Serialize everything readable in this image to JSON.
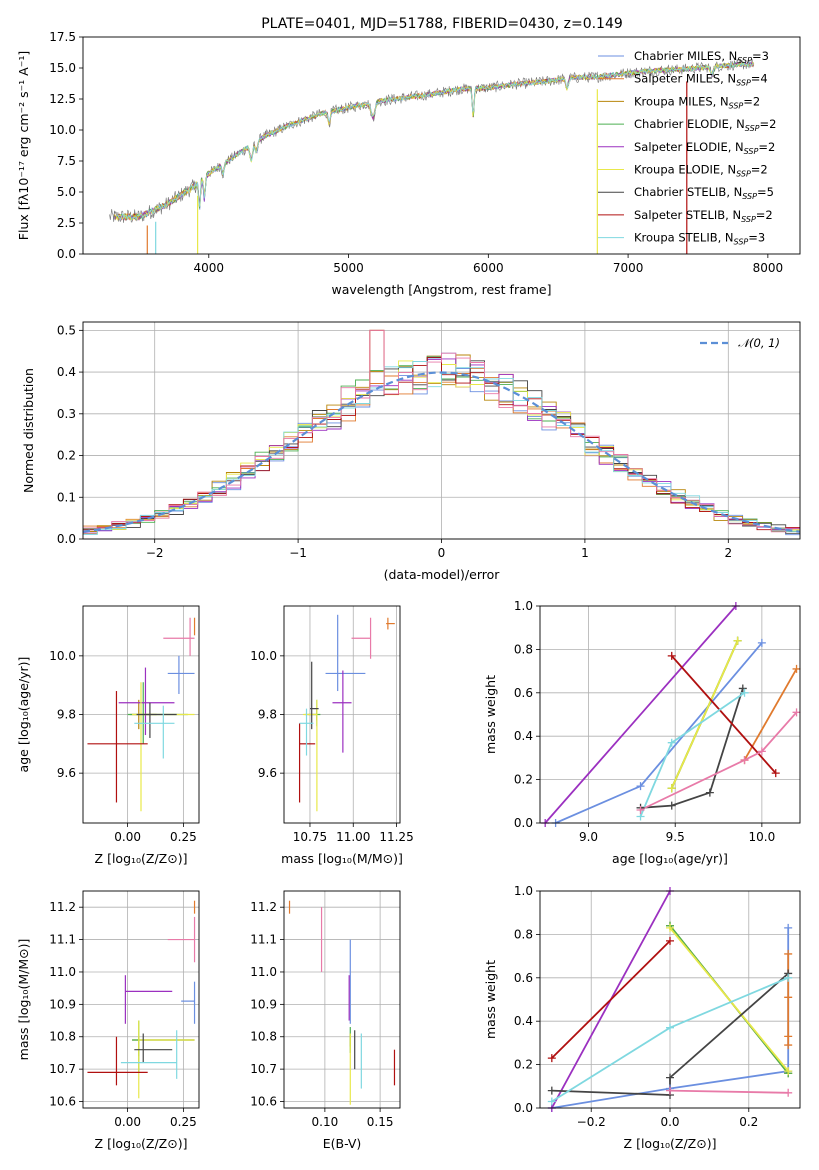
{
  "figure": {
    "title": "PLATE=0401, MJD=51788, FIBERID=0430, z=0.149"
  },
  "colors": [
    "#6b8fe0",
    "#e07a2e",
    "#b8860b",
    "#4caf50",
    "#9b30c0",
    "#e8e84a",
    "#444444",
    "#b01010",
    "#7fd8e0",
    "#e87aa8"
  ],
  "chart_data": [
    {
      "id": "spectrum",
      "type": "line",
      "title": "PLATE=0401, MJD=51788, FIBERID=0430, z=0.149",
      "xlabel": "wavelength [Angstrom, rest frame]",
      "ylabel": "Flux [fλ10⁻¹⁷ erg cm⁻² s⁻¹ A⁻¹]",
      "xlim": [
        3100,
        8230
      ],
      "ylim": [
        0,
        17.5
      ],
      "xticks": [
        4000,
        5000,
        6000,
        7000,
        8000
      ],
      "yticks": [
        0.0,
        2.5,
        5.0,
        7.5,
        10.0,
        12.5,
        15.0,
        17.5
      ],
      "legend_position": "top-right",
      "series": [
        {
          "name": "Chabrier MILES, N_SSP=3",
          "color": "#6b8fe0"
        },
        {
          "name": "Salpeter MILES, N_SSP=4",
          "color": "#e07a2e"
        },
        {
          "name": "Kroupa MILES, N_SSP=2",
          "color": "#b8860b"
        },
        {
          "name": "Chabrier ELODIE, N_SSP=2",
          "color": "#4caf50"
        },
        {
          "name": "Salpeter ELODIE, N_SSP=2",
          "color": "#9b30c0"
        },
        {
          "name": "Kroupa ELODIE, N_SSP=2",
          "color": "#e8e84a"
        },
        {
          "name": "Chabrier STELIB, N_SSP=5",
          "color": "#444444"
        },
        {
          "name": "Salpeter STELIB, N_SSP=2",
          "color": "#b01010"
        },
        {
          "name": "Kroupa STELIB, N_SSP=3",
          "color": "#7fd8e0"
        }
      ],
      "continuum": {
        "x": [
          3300,
          3500,
          3700,
          3900,
          4000,
          4200,
          4400,
          4600,
          4800,
          5000,
          5200,
          5400,
          5600,
          5800,
          6000,
          6200,
          6400,
          6600,
          6800,
          7000,
          7200,
          7400,
          7600,
          7800
        ],
        "y": [
          3.0,
          3.0,
          4.0,
          5.5,
          6.5,
          8.0,
          9.5,
          10.5,
          11.3,
          11.8,
          12.3,
          12.6,
          12.9,
          13.3,
          13.4,
          13.7,
          13.9,
          14.2,
          14.3,
          14.6,
          14.8,
          14.9,
          15.1,
          15.3
        ]
      }
    },
    {
      "id": "residuals",
      "type": "histogram",
      "xlabel": "(data-model)/error",
      "ylabel": "Normed distribution",
      "xlim": [
        -2.5,
        2.5
      ],
      "ylim": [
        0,
        0.52
      ],
      "xticks": [
        -2,
        -1,
        0,
        1,
        2
      ],
      "yticks": [
        0.0,
        0.1,
        0.2,
        0.3,
        0.4,
        0.5
      ],
      "legend": "𝒩(0, 1)",
      "legend_position": "top-right",
      "bin_width": 0.1
    },
    {
      "id": "age-vs-Z",
      "type": "errorbar",
      "xlabel": "Z [log₁₀(Z/Z⊙)]",
      "ylabel": "age  [log₁₀(age/yr)]",
      "xlim": [
        -0.2,
        0.32
      ],
      "ylim": [
        9.43,
        10.17
      ],
      "xticks": [
        0.0,
        0.25
      ],
      "yticks": [
        9.6,
        9.8,
        10.0
      ],
      "points": [
        {
          "x": 0.23,
          "y": 9.94,
          "xerr": [
            0.05,
            0.07
          ],
          "yerr": [
            0.07,
            0.06
          ],
          "color": "#6b8fe0"
        },
        {
          "x": 0.3,
          "y": 10.11,
          "xerr": [
            0.0,
            0.0
          ],
          "yerr": [
            0.04,
            0.02
          ],
          "color": "#e07a2e"
        },
        {
          "x": 0.05,
          "y": 9.8,
          "xerr": [
            0.04,
            0.08
          ],
          "yerr": [
            0.05,
            0.05
          ],
          "color": "#b8860b"
        },
        {
          "x": 0.07,
          "y": 9.8,
          "xerr": [
            0.07,
            0.2
          ],
          "yerr": [
            0.1,
            0.11
          ],
          "color": "#4caf50"
        },
        {
          "x": 0.08,
          "y": 9.84,
          "xerr": [
            0.12,
            0.13
          ],
          "yerr": [
            0.11,
            0.12
          ],
          "color": "#9b30c0"
        },
        {
          "x": 0.06,
          "y": 9.8,
          "xerr": [
            0.04,
            0.24
          ],
          "yerr": [
            0.33,
            0.11
          ],
          "color": "#e8e84a"
        },
        {
          "x": 0.1,
          "y": 9.8,
          "xerr": [
            0.06,
            0.12
          ],
          "yerr": [
            0.08,
            0.04
          ],
          "color": "#444444"
        },
        {
          "x": -0.05,
          "y": 9.7,
          "xerr": [
            0.13,
            0.14
          ],
          "yerr": [
            0.2,
            0.18
          ],
          "color": "#b01010"
        },
        {
          "x": 0.16,
          "y": 9.77,
          "xerr": [
            0.13,
            0.05
          ],
          "yerr": [
            0.12,
            0.06
          ],
          "color": "#7fd8e0"
        },
        {
          "x": 0.28,
          "y": 10.06,
          "xerr": [
            0.12,
            0.02
          ],
          "yerr": [
            0.06,
            0.07
          ],
          "color": "#e87aa8"
        }
      ]
    },
    {
      "id": "age-vs-mass",
      "type": "errorbar",
      "xlabel": "mass [log₁₀(M/M⊙)]",
      "ylabel": "",
      "xlim": [
        10.6,
        11.27
      ],
      "ylim": [
        9.43,
        10.17
      ],
      "xticks": [
        10.75,
        11.0,
        11.25
      ],
      "yticks": [
        9.6,
        9.8,
        10.0
      ],
      "points": [
        {
          "x": 10.91,
          "y": 9.94,
          "xerr": [
            0.07,
            0.16
          ],
          "yerr": [
            0.06,
            0.2
          ],
          "color": "#6b8fe0"
        },
        {
          "x": 11.2,
          "y": 10.11,
          "xerr": [
            0.01,
            0.04
          ],
          "yerr": [
            0.02,
            0.02
          ],
          "color": "#e07a2e"
        },
        {
          "x": 10.79,
          "y": 9.8,
          "xerr": [
            0.07,
            0.0
          ],
          "yerr": [
            0.02,
            0.02
          ],
          "color": "#b8860b"
        },
        {
          "x": 10.79,
          "y": 9.8,
          "xerr": [
            0.05,
            0.02
          ],
          "yerr": [
            0.04,
            0.05
          ],
          "color": "#4caf50"
        },
        {
          "x": 10.94,
          "y": 9.84,
          "xerr": [
            0.06,
            0.05
          ],
          "yerr": [
            0.17,
            0.11
          ],
          "color": "#9b30c0"
        },
        {
          "x": 10.79,
          "y": 9.8,
          "xerr": [
            0.08,
            0.0
          ],
          "yerr": [
            0.33,
            0.05
          ],
          "color": "#e8e84a"
        },
        {
          "x": 10.76,
          "y": 9.82,
          "xerr": [
            0.01,
            0.04
          ],
          "yerr": [
            0.07,
            0.16
          ],
          "color": "#444444"
        },
        {
          "x": 10.69,
          "y": 9.7,
          "xerr": [
            0.0,
            0.09
          ],
          "yerr": [
            0.2,
            0.07
          ],
          "color": "#b01010"
        },
        {
          "x": 10.73,
          "y": 9.77,
          "xerr": [
            0.04,
            0.04
          ],
          "yerr": [
            0.11,
            0.05
          ],
          "color": "#7fd8e0"
        },
        {
          "x": 11.1,
          "y": 10.06,
          "xerr": [
            0.11,
            0.0
          ],
          "yerr": [
            0.07,
            0.07
          ],
          "color": "#e87aa8"
        }
      ]
    },
    {
      "id": "mw-vs-age",
      "type": "line",
      "xlabel": "age  [log₁₀(age/yr)]",
      "ylabel": "mass weight",
      "xlim": [
        8.72,
        10.22
      ],
      "ylim": [
        0,
        1
      ],
      "xticks": [
        9.0,
        9.5,
        10.0
      ],
      "yticks": [
        0.0,
        0.2,
        0.4,
        0.6,
        0.8,
        1.0
      ],
      "series": [
        {
          "color": "#6b8fe0",
          "x": [
            8.81,
            9.3,
            10.0
          ],
          "y": [
            0.0,
            0.17,
            0.83
          ]
        },
        {
          "color": "#e07a2e",
          "x": [
            9.9,
            10.2
          ],
          "y": [
            0.29,
            0.71
          ]
        },
        {
          "color": "#b8860b",
          "x": [
            9.48,
            9.86
          ],
          "y": [
            0.16,
            0.84
          ]
        },
        {
          "color": "#4caf50",
          "x": [
            9.48,
            9.86
          ],
          "y": [
            0.16,
            0.84
          ]
        },
        {
          "color": "#9b30c0",
          "x": [
            8.75,
            9.85
          ],
          "y": [
            0.0,
            1.0
          ]
        },
        {
          "color": "#e8e84a",
          "x": [
            9.48,
            9.86
          ],
          "y": [
            0.16,
            0.84
          ]
        },
        {
          "color": "#444444",
          "x": [
            9.3,
            9.48,
            9.7,
            9.89
          ],
          "y": [
            0.07,
            0.08,
            0.14,
            0.62
          ]
        },
        {
          "color": "#b01010",
          "x": [
            9.48,
            10.08
          ],
          "y": [
            0.77,
            0.23
          ]
        },
        {
          "color": "#7fd8e0",
          "x": [
            9.3,
            9.48,
            9.9
          ],
          "y": [
            0.03,
            0.37,
            0.6
          ]
        },
        {
          "color": "#e87aa8",
          "x": [
            9.3,
            9.9,
            10.0,
            10.2
          ],
          "y": [
            0.06,
            0.29,
            0.33,
            0.51
          ]
        }
      ]
    },
    {
      "id": "mass-vs-Z",
      "type": "errorbar",
      "xlabel": "Z [log₁₀(Z/Z⊙)]",
      "ylabel": "mass [log₁₀(M/M⊙)]",
      "xlim": [
        -0.2,
        0.32
      ],
      "ylim": [
        10.58,
        11.25
      ],
      "xticks": [
        0.0,
        0.25
      ],
      "yticks": [
        10.6,
        10.7,
        10.8,
        10.9,
        11.0,
        11.1,
        11.2
      ],
      "points": [
        {
          "x": 0.3,
          "y": 10.91,
          "xerr": [
            0.06,
            0.0
          ],
          "yerr": [
            0.07,
            0.06
          ],
          "color": "#6b8fe0"
        },
        {
          "x": 0.3,
          "y": 11.2,
          "xerr": [
            0.0,
            0.0
          ],
          "yerr": [
            0.02,
            0.02
          ],
          "color": "#e07a2e"
        },
        {
          "x": 0.05,
          "y": 10.79,
          "xerr": [
            0.03,
            0.25
          ],
          "yerr": [
            0.05,
            0.01
          ],
          "color": "#b8860b"
        },
        {
          "x": 0.05,
          "y": 10.79,
          "xerr": [
            0.03,
            0.25
          ],
          "yerr": [
            0.1,
            0.06
          ],
          "color": "#4caf50"
        },
        {
          "x": -0.01,
          "y": 10.94,
          "xerr": [
            0.0,
            0.21
          ],
          "yerr": [
            0.1,
            0.05
          ],
          "color": "#9b30c0"
        },
        {
          "x": 0.05,
          "y": 10.79,
          "xerr": [
            0.0,
            0.25
          ],
          "yerr": [
            0.18,
            0.06
          ],
          "color": "#e8e84a"
        },
        {
          "x": 0.07,
          "y": 10.76,
          "xerr": [
            0.04,
            0.13
          ],
          "yerr": [
            0.04,
            0.05
          ],
          "color": "#444444"
        },
        {
          "x": -0.05,
          "y": 10.69,
          "xerr": [
            0.13,
            0.14
          ],
          "yerr": [
            0.04,
            0.11
          ],
          "color": "#b01010"
        },
        {
          "x": 0.22,
          "y": 10.72,
          "xerr": [
            0.25,
            0.0
          ],
          "yerr": [
            0.05,
            0.1
          ],
          "color": "#7fd8e0"
        },
        {
          "x": 0.3,
          "y": 11.1,
          "xerr": [
            0.12,
            0.0
          ],
          "yerr": [
            0.07,
            0.07
          ],
          "color": "#e87aa8"
        }
      ]
    },
    {
      "id": "mass-vs-ebv",
      "type": "errorbar",
      "xlabel": "E(B-V)",
      "ylabel": "",
      "xlim": [
        0.063,
        0.168
      ],
      "ylim": [
        10.58,
        11.25
      ],
      "xticks": [
        0.1,
        0.15
      ],
      "yticks": [
        10.6,
        10.7,
        10.8,
        10.9,
        11.0,
        11.1,
        11.2
      ],
      "points": [
        {
          "x": 0.123,
          "y": 10.91,
          "xerr": [
            0.0,
            0.0
          ],
          "yerr": [
            0.07,
            0.19
          ],
          "color": "#6b8fe0"
        },
        {
          "x": 0.068,
          "y": 11.2,
          "xerr": [
            0.0,
            0.0
          ],
          "yerr": [
            0.02,
            0.02
          ],
          "color": "#e07a2e"
        },
        {
          "x": 0.123,
          "y": 10.79,
          "xerr": [
            0.0,
            0.0
          ],
          "yerr": [
            0.02,
            0.02
          ],
          "color": "#b8860b"
        },
        {
          "x": 0.123,
          "y": 10.79,
          "xerr": [
            0.0,
            0.0
          ],
          "yerr": [
            0.04,
            0.04
          ],
          "color": "#4caf50"
        },
        {
          "x": 0.122,
          "y": 10.94,
          "xerr": [
            0.0,
            0.0
          ],
          "yerr": [
            0.09,
            0.05
          ],
          "color": "#9b30c0"
        },
        {
          "x": 0.123,
          "y": 10.75,
          "xerr": [
            0.0,
            0.0
          ],
          "yerr": [
            0.16,
            0.06
          ],
          "color": "#e8e84a"
        },
        {
          "x": 0.127,
          "y": 10.76,
          "xerr": [
            0.0,
            0.0
          ],
          "yerr": [
            0.06,
            0.06
          ],
          "color": "#444444"
        },
        {
          "x": 0.163,
          "y": 10.7,
          "xerr": [
            0.0,
            0.0
          ],
          "yerr": [
            0.05,
            0.06
          ],
          "color": "#b01010"
        },
        {
          "x": 0.133,
          "y": 10.72,
          "xerr": [
            0.0,
            0.0
          ],
          "yerr": [
            0.08,
            0.09
          ],
          "color": "#7fd8e0"
        },
        {
          "x": 0.097,
          "y": 11.1,
          "xerr": [
            0.0,
            0.0
          ],
          "yerr": [
            0.1,
            0.1
          ],
          "color": "#e87aa8"
        }
      ]
    },
    {
      "id": "mw-vs-Z",
      "type": "line",
      "xlabel": "Z [log₁₀(Z/Z⊙)]",
      "ylabel": "mass weight",
      "xlim": [
        -0.33,
        0.33
      ],
      "ylim": [
        0,
        1
      ],
      "xticks": [
        -0.2,
        0.0,
        0.2
      ],
      "yticks": [
        0.0,
        0.2,
        0.4,
        0.6,
        0.8,
        1.0
      ],
      "series": [
        {
          "color": "#6b8fe0",
          "x": [
            -0.3,
            0.0,
            0.3,
            0.3
          ],
          "y": [
            0.0,
            0.09,
            0.17,
            0.83
          ]
        },
        {
          "color": "#e07a2e",
          "x": [
            0.3,
            0.3,
            0.3,
            0.3
          ],
          "y": [
            0.29,
            0.33,
            0.51,
            0.71
          ]
        },
        {
          "color": "#b8860b",
          "x": [
            0.0,
            0.3
          ],
          "y": [
            0.84,
            0.16
          ]
        },
        {
          "color": "#4caf50",
          "x": [
            0.0,
            0.3
          ],
          "y": [
            0.84,
            0.16
          ]
        },
        {
          "color": "#9b30c0",
          "x": [
            -0.3,
            0.0
          ],
          "y": [
            0.0,
            1.0
          ]
        },
        {
          "color": "#e8e84a",
          "x": [
            0.0,
            0.3
          ],
          "y": [
            0.83,
            0.17
          ]
        },
        {
          "color": "#444444",
          "x": [
            -0.3,
            0.0,
            0.0,
            0.3
          ],
          "y": [
            0.08,
            0.06,
            0.14,
            0.62
          ]
        },
        {
          "color": "#b01010",
          "x": [
            -0.3,
            0.0
          ],
          "y": [
            0.23,
            0.77
          ]
        },
        {
          "color": "#7fd8e0",
          "x": [
            -0.3,
            0.0,
            0.3
          ],
          "y": [
            0.03,
            0.37,
            0.6
          ]
        },
        {
          "color": "#e87aa8",
          "x": [
            0.0,
            0.3
          ],
          "y": [
            0.08,
            0.07
          ]
        }
      ]
    }
  ]
}
